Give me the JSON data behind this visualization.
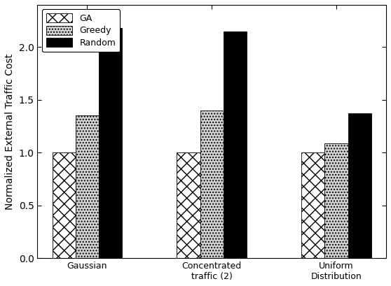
{
  "categories": [
    "Gaussian",
    "Concentrated\ntraffic (2)",
    "Uniform\nDistribution"
  ],
  "series": {
    "GA": [
      1.0,
      1.0,
      1.0
    ],
    "Greedy": [
      1.35,
      1.4,
      1.09
    ],
    "Random": [
      2.18,
      2.15,
      1.37
    ]
  },
  "bar_width": 0.28,
  "group_positions": [
    1.0,
    2.5,
    4.0
  ],
  "ylim": [
    0,
    2.4
  ],
  "yticks": [
    0,
    0.5,
    1.0,
    1.5,
    2.0
  ],
  "ylabel": "Normalized External Traffic Cost",
  "legend_labels": [
    "GA",
    "Greedy",
    "Random"
  ],
  "hatch_GA": "xx",
  "hatch_Greedy": "....",
  "hatch_Random": "",
  "color_GA": "white",
  "color_Greedy": "#d3d3d3",
  "color_Random": "black",
  "edgecolor": "black",
  "title": "",
  "figsize": [
    5.58,
    4.09
  ],
  "dpi": 100
}
